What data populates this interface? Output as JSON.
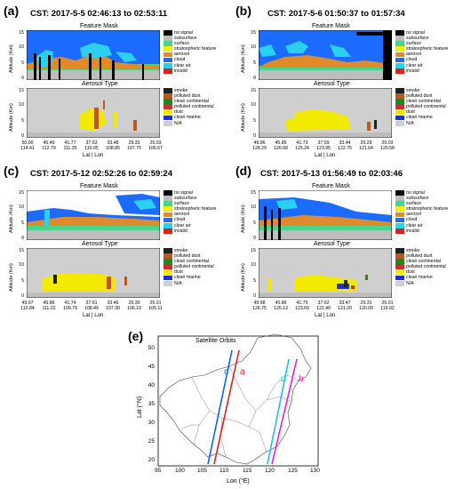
{
  "colors": {
    "no_signal": "#000000",
    "subsurface": "#bdbdbd",
    "surface": "#45d68c",
    "stratospheric_feature": "#f2ee00",
    "aerosol": "#e08a2a",
    "cloud": "#1c6bff",
    "clear_air": "#2ad0f0",
    "invalid": "#e02020",
    "smoke": "#202020",
    "polluted_dust": "#b85b1c",
    "clean_continental": "#1e8a1e",
    "polluted_continental": "#cc2d2d",
    "dust": "#f2ea00",
    "clean_marine": "#1a32c8",
    "na": "#cfcfcf",
    "orbit_a": "#e02020",
    "orbit_b": "#e020e0",
    "orbit_c": "#1060ff",
    "orbit_d": "#20c0e0"
  },
  "feature_legend": [
    "no signal",
    "subsurface",
    "surface",
    "stratospheric feature",
    "aerosol",
    "cloud",
    "clear air",
    "invalid"
  ],
  "aerosol_legend": [
    "smoke",
    "polluted dust",
    "clean continental",
    "polluted continental",
    "dust",
    "clean marine",
    "N/A"
  ],
  "feature_mask_title": "Feature Mask",
  "aerosol_type_title": "Aerosol Type",
  "y_axis_label": "Altitude (Km)",
  "x_axis_label": "Lat | Lon",
  "y_ticks": [
    "15",
    "10",
    "5",
    "0"
  ],
  "panels": [
    {
      "label": "(a)",
      "title": "CST: 2017-5-5  02:46:13 to 02:53:11",
      "lat": [
        "50.00",
        "45.49",
        "41.77",
        "37.63",
        "33.48",
        "29.33",
        "25.03"
      ],
      "lon": [
        "114.41",
        "112.79",
        "111.35",
        "110.05",
        "108.85",
        "107.75",
        "106.67"
      ]
    },
    {
      "label": "(b)",
      "title": "CST: 2017-5-6  01:50:37 to 01:57:34",
      "lat": [
        "49.96",
        "45.85",
        "41.73",
        "37.59",
        "33.44",
        "29.29",
        "25.03"
      ],
      "lon": [
        "128.29",
        "126.68",
        "125.24",
        "123.95",
        "122.75",
        "121.64",
        "120.58"
      ]
    },
    {
      "label": "(c)",
      "title": "CST: 2017-5-12  02:52:26 to 02:59:24",
      "lat": [
        "49.97",
        "45.86",
        "41.74",
        "37.61",
        "33.46",
        "29.30",
        "25.01"
      ],
      "lon": [
        "112.84",
        "111.22",
        "109.79",
        "108.49",
        "107.30",
        "106.19",
        "105.11"
      ]
    },
    {
      "label": "(d)",
      "title": "CST: 2017-5-13  01:56:49 to 02:03:46",
      "lat": [
        "49.98",
        "45.86",
        "41.75",
        "37.62",
        "33.47",
        "29.31",
        "25.01"
      ],
      "lon": [
        "126.75",
        "125.13",
        "123.69",
        "122.40",
        "121.20",
        "120.09",
        "119.02"
      ]
    }
  ],
  "map": {
    "label": "(e)",
    "title": "Satellite Orbits",
    "y_label": "Lat (°N)",
    "x_label": "Lon (°E)",
    "y_ticks": [
      "50",
      "45",
      "40",
      "35",
      "30",
      "25",
      "20"
    ],
    "x_ticks": [
      "95",
      "100",
      "105",
      "110",
      "115",
      "120",
      "125",
      "130"
    ],
    "orbit_labels": [
      "a",
      "b",
      "c",
      "d"
    ]
  }
}
